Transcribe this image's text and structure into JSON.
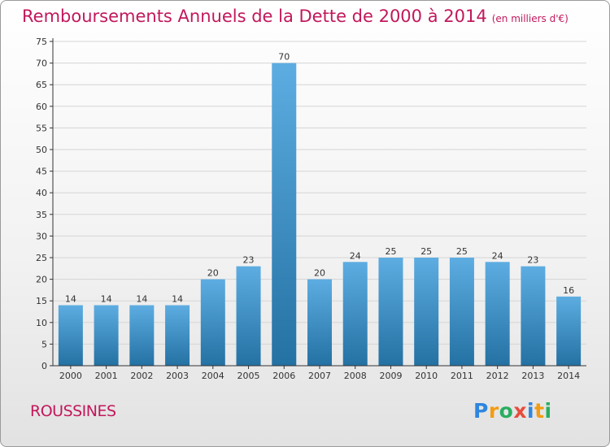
{
  "page": {
    "title": "Remboursements Annuels de la Dette de 2000 à 2014",
    "subtitle": "(en milliers d'€)",
    "commune": "ROUSSINES",
    "logo_letters": [
      {
        "ch": "P",
        "color": "#2e86de"
      },
      {
        "ch": "r",
        "color": "#f39c12"
      },
      {
        "ch": "o",
        "color": "#27ae60"
      },
      {
        "ch": "x",
        "color": "#e74c3c"
      },
      {
        "ch": "i",
        "color": "#2e86de"
      },
      {
        "ch": "t",
        "color": "#f39c12"
      },
      {
        "ch": "i",
        "color": "#27ae60"
      }
    ]
  },
  "chart_data": {
    "type": "bar",
    "title": "Remboursements Annuels de la Dette de 2000 à 2014",
    "subtitle": "(en milliers d'€)",
    "categories": [
      "2000",
      "2001",
      "2002",
      "2003",
      "2004",
      "2005",
      "2006",
      "2007",
      "2008",
      "2009",
      "2010",
      "2011",
      "2012",
      "2013",
      "2014"
    ],
    "values": [
      14,
      14,
      14,
      14,
      20,
      23,
      70,
      20,
      24,
      25,
      25,
      25,
      24,
      23,
      16
    ],
    "ylim": [
      0,
      75
    ],
    "yticks": [
      0,
      5,
      10,
      15,
      20,
      25,
      30,
      35,
      40,
      45,
      50,
      55,
      60,
      65,
      70,
      75
    ],
    "grid": true,
    "colors": {
      "bar_light": "#5dade2",
      "bar_dark": "#2471a3",
      "grid": "#d5d5d5",
      "axis": "#333333"
    }
  }
}
